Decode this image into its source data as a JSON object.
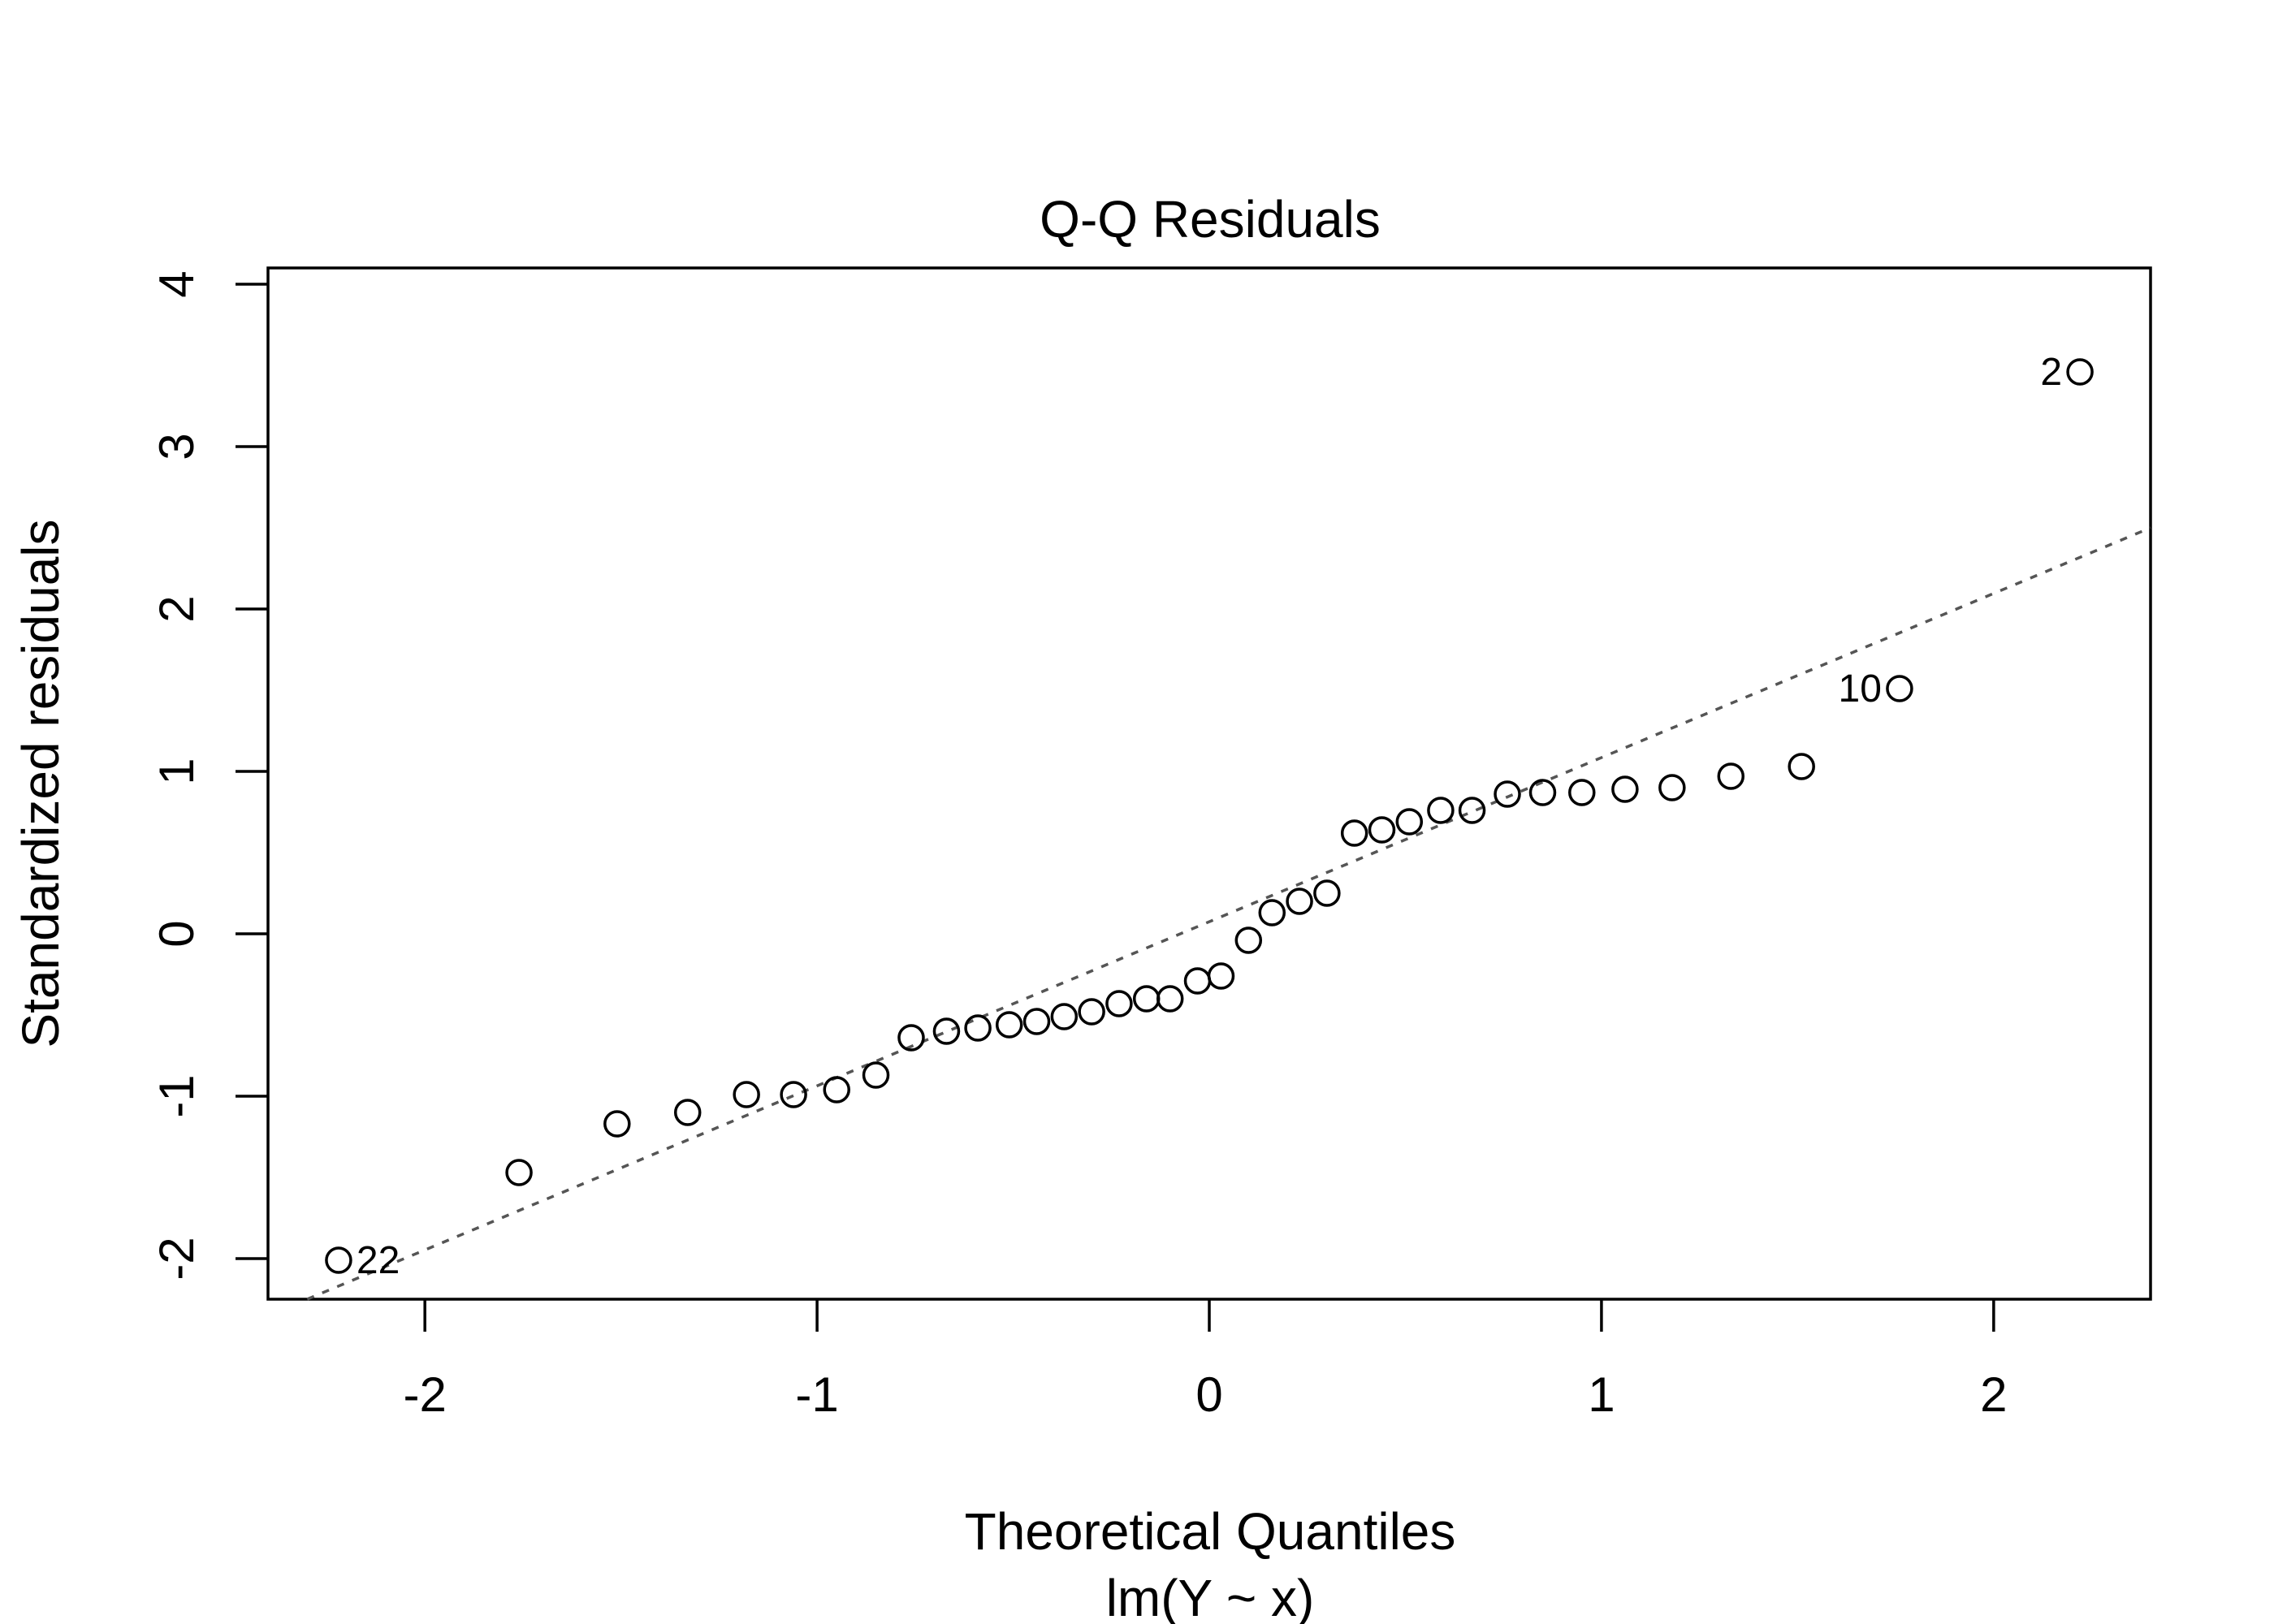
{
  "chart_data": {
    "type": "scatter",
    "title": "Q-Q Residuals",
    "xlabel": "Theoretical Quantiles",
    "sublabel": "lm(Y ~ x)",
    "ylabel": "Standardized residuals",
    "xlim": [
      -2.4,
      2.4
    ],
    "ylim": [
      -2.25,
      4.1
    ],
    "x_ticks": [
      -2,
      -1,
      0,
      1,
      2
    ],
    "x_tick_labels": [
      "-2",
      "-1",
      "0",
      "1",
      "2"
    ],
    "y_ticks": [
      -2,
      -1,
      0,
      1,
      2,
      3,
      4
    ],
    "y_tick_labels": [
      "-2",
      "-1",
      "0",
      "1",
      "2",
      "3",
      "4"
    ],
    "grid": false,
    "reference_line": {
      "style": "dotted",
      "color": "#555555",
      "points": [
        [
          -2.3,
          -2.25
        ],
        [
          2.4,
          2.5
        ]
      ]
    },
    "points": [
      {
        "x": -2.22,
        "y": -2.01,
        "label": "22"
      },
      {
        "x": -1.76,
        "y": -1.47
      },
      {
        "x": -1.51,
        "y": -1.17
      },
      {
        "x": -1.33,
        "y": -1.1
      },
      {
        "x": -1.18,
        "y": -0.99
      },
      {
        "x": -1.06,
        "y": -0.99
      },
      {
        "x": -0.95,
        "y": -0.96
      },
      {
        "x": -0.85,
        "y": -0.87
      },
      {
        "x": -0.76,
        "y": -0.64
      },
      {
        "x": -0.67,
        "y": -0.6
      },
      {
        "x": -0.59,
        "y": -0.58
      },
      {
        "x": -0.51,
        "y": -0.56
      },
      {
        "x": -0.44,
        "y": -0.54
      },
      {
        "x": -0.37,
        "y": -0.51
      },
      {
        "x": -0.3,
        "y": -0.48
      },
      {
        "x": -0.23,
        "y": -0.43
      },
      {
        "x": -0.16,
        "y": -0.4
      },
      {
        "x": -0.1,
        "y": -0.4
      },
      {
        "x": -0.03,
        "y": -0.29
      },
      {
        "x": 0.03,
        "y": -0.26
      },
      {
        "x": 0.1,
        "y": -0.04
      },
      {
        "x": 0.16,
        "y": 0.13
      },
      {
        "x": 0.23,
        "y": 0.2
      },
      {
        "x": 0.3,
        "y": 0.25
      },
      {
        "x": 0.37,
        "y": 0.62
      },
      {
        "x": 0.44,
        "y": 0.64
      },
      {
        "x": 0.51,
        "y": 0.69
      },
      {
        "x": 0.59,
        "y": 0.76
      },
      {
        "x": 0.67,
        "y": 0.76
      },
      {
        "x": 0.76,
        "y": 0.86
      },
      {
        "x": 0.85,
        "y": 0.87
      },
      {
        "x": 0.95,
        "y": 0.87
      },
      {
        "x": 1.06,
        "y": 0.89
      },
      {
        "x": 1.18,
        "y": 0.9
      },
      {
        "x": 1.33,
        "y": 0.97
      },
      {
        "x": 1.51,
        "y": 1.03
      },
      {
        "x": 1.76,
        "y": 1.51,
        "label": "10"
      },
      {
        "x": 2.22,
        "y": 3.46,
        "label": "2"
      }
    ]
  }
}
